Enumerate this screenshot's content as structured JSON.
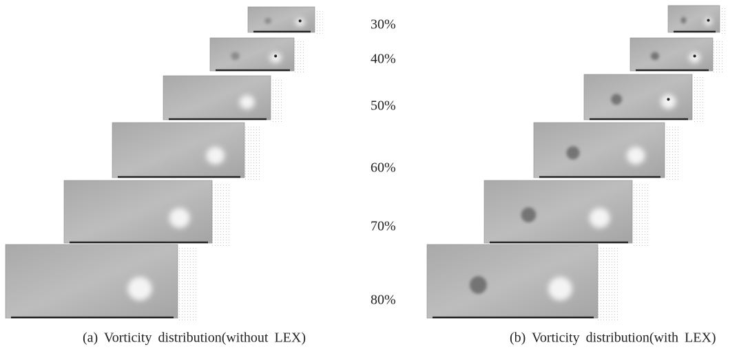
{
  "levels": [
    "30%",
    "40%",
    "50%",
    "60%",
    "70%",
    "80%"
  ],
  "captions": [
    "(a) Vorticity distribution(without LEX)",
    "(b) Vorticity distribution(with LEX)"
  ]
}
